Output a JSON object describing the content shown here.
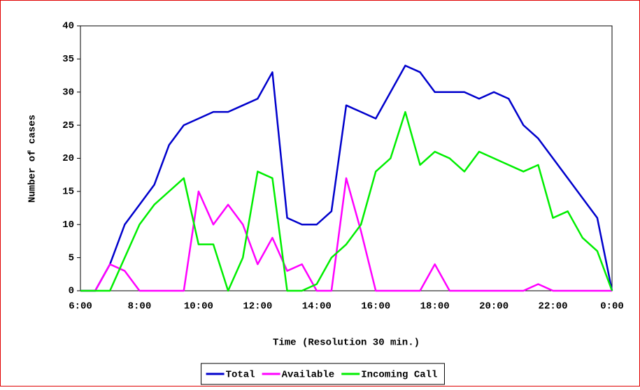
{
  "chart_data": {
    "type": "line",
    "x_label": "Time (Resolution 30 min.)",
    "y_label": "Number of cases",
    "categories": [
      "6:00",
      null,
      null,
      null,
      "8:00",
      null,
      null,
      null,
      "10:00",
      null,
      null,
      null,
      "12:00",
      null,
      null,
      null,
      "14:00",
      null,
      null,
      null,
      "16:00",
      null,
      null,
      null,
      "18:00",
      null,
      null,
      null,
      "20:00",
      null,
      null,
      null,
      "22:00",
      null,
      null,
      null,
      "0:00"
    ],
    "series": [
      {
        "name": "Total",
        "color": "#0000cc",
        "values": [
          0,
          0,
          4,
          10,
          13,
          16,
          22,
          25,
          26,
          27,
          27,
          28,
          29,
          33,
          11,
          10,
          10,
          12,
          28,
          27,
          26,
          30,
          34,
          33,
          30,
          30,
          30,
          29,
          30,
          29,
          25,
          23,
          20,
          17,
          14,
          11,
          0
        ]
      },
      {
        "name": "Available",
        "color": "#ff00ff",
        "values": [
          0,
          0,
          4,
          3,
          0,
          0,
          0,
          0,
          15,
          10,
          13,
          10,
          4,
          8,
          3,
          4,
          0,
          0,
          17,
          9,
          0,
          0,
          0,
          0,
          4,
          0,
          0,
          0,
          0,
          0,
          0,
          1,
          0,
          0,
          0,
          0,
          0
        ]
      },
      {
        "name": "Incoming Call",
        "color": "#00ee00",
        "values": [
          0,
          0,
          0,
          5,
          10,
          13,
          15,
          17,
          7,
          7,
          0,
          5,
          18,
          17,
          0,
          0,
          1,
          5,
          7,
          10,
          18,
          20,
          27,
          19,
          21,
          20,
          18,
          21,
          20,
          19,
          18,
          19,
          11,
          12,
          8,
          6,
          0
        ]
      }
    ],
    "ylim": [
      0,
      40
    ],
    "yticks": [
      0,
      5,
      10,
      15,
      20,
      25,
      30,
      35,
      40
    ],
    "grid": false,
    "legend": "bottom"
  }
}
